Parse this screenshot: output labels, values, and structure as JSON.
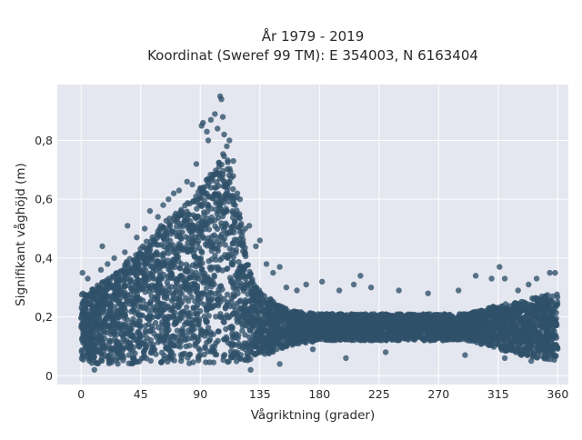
{
  "chart_data": {
    "type": "scatter",
    "title": "År 1979 - 2019",
    "subtitle": "Koordinat (Sweref 99 TM): E 354003, N 6163404",
    "xlabel": "Vågriktning (grader)",
    "ylabel": "Signifikant våghöjd (m)",
    "xlim": [
      -18,
      368
    ],
    "ylim": [
      -0.03,
      0.99
    ],
    "x_ticks": [
      0,
      45,
      90,
      135,
      180,
      225,
      270,
      315,
      360
    ],
    "x_tick_labels": [
      "0",
      "45",
      "90",
      "135",
      "180",
      "225",
      "270",
      "315",
      "360"
    ],
    "y_ticks": [
      0,
      0.2,
      0.4,
      0.6,
      0.8
    ],
    "y_tick_labels": [
      "0",
      "0,2",
      "0,4",
      "0,6",
      "0,8"
    ],
    "grid": true,
    "legend": "none",
    "marker_color": "#2f5169",
    "background_color": "#e5e7f0",
    "envelope": {
      "x": [
        0,
        10,
        20,
        30,
        40,
        50,
        60,
        70,
        80,
        90,
        100,
        105,
        110,
        115,
        120,
        125,
        130,
        140,
        150,
        160,
        180,
        200,
        225,
        250,
        270,
        290,
        300,
        315,
        330,
        345,
        360
      ],
      "y_upper": [
        0.28,
        0.3,
        0.33,
        0.37,
        0.42,
        0.46,
        0.51,
        0.55,
        0.59,
        0.64,
        0.7,
        0.74,
        0.77,
        0.7,
        0.55,
        0.4,
        0.32,
        0.27,
        0.24,
        0.22,
        0.21,
        0.21,
        0.21,
        0.21,
        0.21,
        0.21,
        0.22,
        0.24,
        0.25,
        0.27,
        0.28
      ],
      "y_lower": [
        0.05,
        0.04,
        0.04,
        0.04,
        0.04,
        0.04,
        0.04,
        0.04,
        0.04,
        0.04,
        0.04,
        0.04,
        0.04,
        0.04,
        0.05,
        0.05,
        0.06,
        0.07,
        0.09,
        0.1,
        0.12,
        0.12,
        0.12,
        0.12,
        0.12,
        0.12,
        0.11,
        0.09,
        0.07,
        0.06,
        0.05
      ]
    },
    "outliers": [
      {
        "x": 1,
        "y": 0.35
      },
      {
        "x": 5,
        "y": 0.33
      },
      {
        "x": 10,
        "y": 0.02
      },
      {
        "x": 15,
        "y": 0.36
      },
      {
        "x": 16,
        "y": 0.44
      },
      {
        "x": 20,
        "y": 0.38
      },
      {
        "x": 25,
        "y": 0.4
      },
      {
        "x": 33,
        "y": 0.42
      },
      {
        "x": 35,
        "y": 0.51
      },
      {
        "x": 42,
        "y": 0.47
      },
      {
        "x": 48,
        "y": 0.5
      },
      {
        "x": 52,
        "y": 0.56
      },
      {
        "x": 58,
        "y": 0.54
      },
      {
        "x": 62,
        "y": 0.58
      },
      {
        "x": 66,
        "y": 0.6
      },
      {
        "x": 70,
        "y": 0.62
      },
      {
        "x": 74,
        "y": 0.63
      },
      {
        "x": 80,
        "y": 0.66
      },
      {
        "x": 84,
        "y": 0.65
      },
      {
        "x": 87,
        "y": 0.72
      },
      {
        "x": 91,
        "y": 0.85
      },
      {
        "x": 92,
        "y": 0.86
      },
      {
        "x": 95,
        "y": 0.83
      },
      {
        "x": 96,
        "y": 0.8
      },
      {
        "x": 98,
        "y": 0.87
      },
      {
        "x": 101,
        "y": 0.89
      },
      {
        "x": 103,
        "y": 0.84
      },
      {
        "x": 105,
        "y": 0.95
      },
      {
        "x": 106,
        "y": 0.94
      },
      {
        "x": 107,
        "y": 0.88
      },
      {
        "x": 108,
        "y": 0.82
      },
      {
        "x": 110,
        "y": 0.78
      },
      {
        "x": 112,
        "y": 0.8
      },
      {
        "x": 115,
        "y": 0.73
      },
      {
        "x": 118,
        "y": 0.62
      },
      {
        "x": 120,
        "y": 0.6
      },
      {
        "x": 124,
        "y": 0.5
      },
      {
        "x": 127,
        "y": 0.51
      },
      {
        "x": 132,
        "y": 0.44
      },
      {
        "x": 135,
        "y": 0.46
      },
      {
        "x": 140,
        "y": 0.38
      },
      {
        "x": 145,
        "y": 0.35
      },
      {
        "x": 150,
        "y": 0.37
      },
      {
        "x": 155,
        "y": 0.3
      },
      {
        "x": 163,
        "y": 0.29
      },
      {
        "x": 170,
        "y": 0.31
      },
      {
        "x": 182,
        "y": 0.32
      },
      {
        "x": 195,
        "y": 0.29
      },
      {
        "x": 206,
        "y": 0.31
      },
      {
        "x": 211,
        "y": 0.34
      },
      {
        "x": 219,
        "y": 0.3
      },
      {
        "x": 240,
        "y": 0.29
      },
      {
        "x": 262,
        "y": 0.28
      },
      {
        "x": 285,
        "y": 0.29
      },
      {
        "x": 298,
        "y": 0.34
      },
      {
        "x": 310,
        "y": 0.33
      },
      {
        "x": 316,
        "y": 0.37
      },
      {
        "x": 320,
        "y": 0.33
      },
      {
        "x": 330,
        "y": 0.29
      },
      {
        "x": 338,
        "y": 0.31
      },
      {
        "x": 344,
        "y": 0.33
      },
      {
        "x": 354,
        "y": 0.35
      },
      {
        "x": 358,
        "y": 0.35
      },
      {
        "x": 128,
        "y": 0.02
      },
      {
        "x": 150,
        "y": 0.04
      },
      {
        "x": 175,
        "y": 0.09
      },
      {
        "x": 200,
        "y": 0.06
      },
      {
        "x": 230,
        "y": 0.08
      },
      {
        "x": 290,
        "y": 0.07
      },
      {
        "x": 320,
        "y": 0.06
      },
      {
        "x": 340,
        "y": 0.05
      }
    ]
  }
}
